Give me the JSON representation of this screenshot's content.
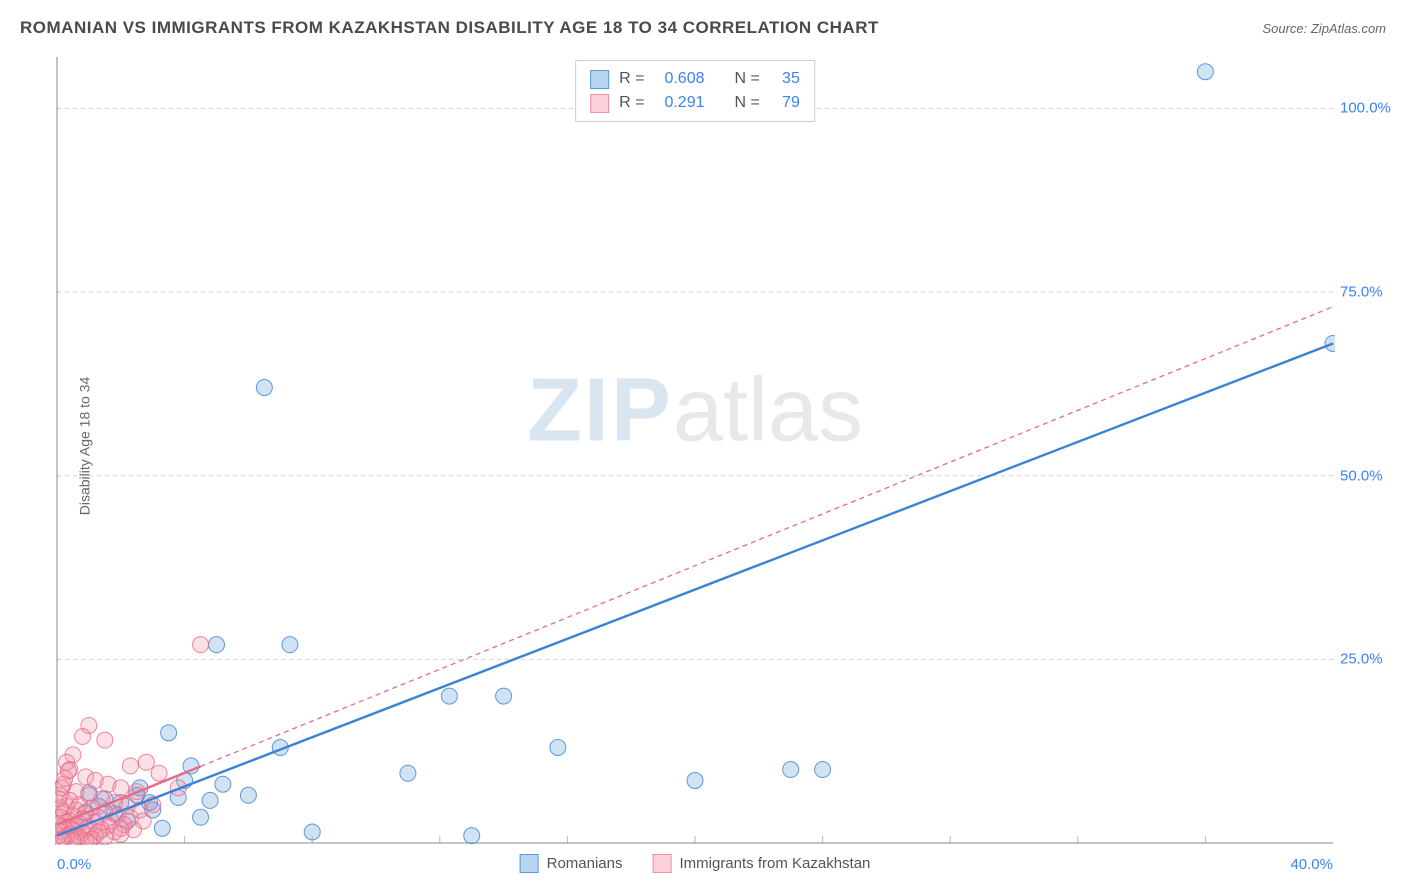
{
  "header": {
    "title": "ROMANIAN VS IMMIGRANTS FROM KAZAKHSTAN DISABILITY AGE 18 TO 34 CORRELATION CHART",
    "source": "Source: ZipAtlas.com"
  },
  "watermark": {
    "zip": "ZIP",
    "atlas": "atlas"
  },
  "chart": {
    "type": "scatter",
    "background_color": "#ffffff",
    "grid_color": "#d0d0d0",
    "axis_color": "#888888",
    "tick_color": "#bbbbbb",
    "ylabel": "Disability Age 18 to 34",
    "ylabel_color": "#666666",
    "xlim": [
      0,
      40
    ],
    "ylim": [
      0,
      107
    ],
    "x_ticks": [
      0,
      40
    ],
    "x_tick_labels": [
      "0.0%",
      "40.0%"
    ],
    "x_minor_ticks": [
      4,
      8,
      12,
      16,
      20,
      24,
      28,
      32,
      36
    ],
    "y_ticks": [
      25,
      50,
      75,
      100
    ],
    "y_tick_labels": [
      "25.0%",
      "50.0%",
      "75.0%",
      "100.0%"
    ],
    "marker_radius": 8,
    "marker_stroke_width": 1,
    "marker_fill_opacity": 0.28,
    "series": [
      {
        "name": "Romanians",
        "color": "#5b9bd5",
        "stroke": "#3b82d6",
        "swatch_fill": "#b8d4f0",
        "swatch_border": "#5b9bd5",
        "r_value": "0.608",
        "n_value": "35",
        "regression": {
          "x1": 0,
          "y1": 1.0,
          "x2": 40,
          "y2": 68.0,
          "stroke_width": 2.4,
          "dash": ""
        },
        "points": [
          [
            36.0,
            105.0
          ],
          [
            40.0,
            68.0
          ],
          [
            6.5,
            62.0
          ],
          [
            5.0,
            27.0
          ],
          [
            7.3,
            27.0
          ],
          [
            12.3,
            20.0
          ],
          [
            14.0,
            20.0
          ],
          [
            15.7,
            13.0
          ],
          [
            23.0,
            10.0
          ],
          [
            24.0,
            10.0
          ],
          [
            20.0,
            8.5
          ],
          [
            11.0,
            9.5
          ],
          [
            7.0,
            13.0
          ],
          [
            3.5,
            15.0
          ],
          [
            4.2,
            10.5
          ],
          [
            5.2,
            8.0
          ],
          [
            6.0,
            6.5
          ],
          [
            8.0,
            1.5
          ],
          [
            13.0,
            1.0
          ],
          [
            2.0,
            5.5
          ],
          [
            2.5,
            6.5
          ],
          [
            1.5,
            6.0
          ],
          [
            3.0,
            4.5
          ],
          [
            4.5,
            3.5
          ],
          [
            1.0,
            6.8
          ],
          [
            1.3,
            5.0
          ],
          [
            2.2,
            3.0
          ],
          [
            3.3,
            2.0
          ],
          [
            4.8,
            5.8
          ],
          [
            3.8,
            6.2
          ],
          [
            2.6,
            7.5
          ],
          [
            1.8,
            4.0
          ],
          [
            0.9,
            4.2
          ],
          [
            2.9,
            5.5
          ],
          [
            4.0,
            8.5
          ]
        ]
      },
      {
        "name": "Immigrants from Kazakhstan",
        "color": "#f08fa6",
        "stroke": "#e86b8a",
        "swatch_fill": "#fad0da",
        "swatch_border": "#f08fa6",
        "r_value": "0.291",
        "n_value": "79",
        "regression": {
          "x1": 0,
          "y1": 2.5,
          "x2": 40,
          "y2": 73.0,
          "stroke_width": 1.3,
          "dash": "5,4",
          "clip_x": 4.5
        },
        "points": [
          [
            4.5,
            27.0
          ],
          [
            1.0,
            16.0
          ],
          [
            0.8,
            14.5
          ],
          [
            1.5,
            14.0
          ],
          [
            2.3,
            10.5
          ],
          [
            2.8,
            11.0
          ],
          [
            3.2,
            9.5
          ],
          [
            0.5,
            12.0
          ],
          [
            0.3,
            11.0
          ],
          [
            0.4,
            10.0
          ],
          [
            0.9,
            9.0
          ],
          [
            1.2,
            8.5
          ],
          [
            1.6,
            8.0
          ],
          [
            2.0,
            7.5
          ],
          [
            2.5,
            7.0
          ],
          [
            0.2,
            8.0
          ],
          [
            0.6,
            7.0
          ],
          [
            1.0,
            6.5
          ],
          [
            1.4,
            6.0
          ],
          [
            1.8,
            5.5
          ],
          [
            2.2,
            5.0
          ],
          [
            2.6,
            4.5
          ],
          [
            3.0,
            5.2
          ],
          [
            0.1,
            6.5
          ],
          [
            0.4,
            5.8
          ],
          [
            0.7,
            5.2
          ],
          [
            1.1,
            4.8
          ],
          [
            1.5,
            4.2
          ],
          [
            1.9,
            3.8
          ],
          [
            2.3,
            3.4
          ],
          [
            2.7,
            3.0
          ],
          [
            0.3,
            5.0
          ],
          [
            0.6,
            4.5
          ],
          [
            0.9,
            4.0
          ],
          [
            1.3,
            3.5
          ],
          [
            1.7,
            3.0
          ],
          [
            2.1,
            2.5
          ],
          [
            0.2,
            4.2
          ],
          [
            0.5,
            3.7
          ],
          [
            0.8,
            3.3
          ],
          [
            1.2,
            2.8
          ],
          [
            1.6,
            2.4
          ],
          [
            2.0,
            2.0
          ],
          [
            0.1,
            3.5
          ],
          [
            0.4,
            3.0
          ],
          [
            0.7,
            2.6
          ],
          [
            1.0,
            2.2
          ],
          [
            1.4,
            1.8
          ],
          [
            1.8,
            1.5
          ],
          [
            0.3,
            2.8
          ],
          [
            0.6,
            2.3
          ],
          [
            0.9,
            1.9
          ],
          [
            1.3,
            1.5
          ],
          [
            0.2,
            2.2
          ],
          [
            0.5,
            1.8
          ],
          [
            0.8,
            1.4
          ],
          [
            1.2,
            1.0
          ],
          [
            0.1,
            1.6
          ],
          [
            0.4,
            1.2
          ],
          [
            0.7,
            0.8
          ],
          [
            1.1,
            0.5
          ],
          [
            0.3,
            1.0
          ],
          [
            0.6,
            0.6
          ],
          [
            0.9,
            0.3
          ],
          [
            0.2,
            0.7
          ],
          [
            0.5,
            0.3
          ],
          [
            0.05,
            1.0
          ],
          [
            0.15,
            0.4
          ],
          [
            1.0,
            0.1
          ],
          [
            1.5,
            0.8
          ],
          [
            2.0,
            1.2
          ],
          [
            2.4,
            1.8
          ],
          [
            0.05,
            2.5
          ],
          [
            0.1,
            4.8
          ],
          [
            0.05,
            6.0
          ],
          [
            0.15,
            7.5
          ],
          [
            0.25,
            8.8
          ],
          [
            0.35,
            9.8
          ],
          [
            3.8,
            7.5
          ]
        ]
      }
    ],
    "legend_bottom": [
      {
        "label": "Romanians",
        "swatch_fill": "#b8d4f0",
        "swatch_border": "#5b9bd5"
      },
      {
        "label": "Immigrants from Kazakhstan",
        "swatch_fill": "#fad0da",
        "swatch_border": "#f08fa6"
      }
    ]
  }
}
